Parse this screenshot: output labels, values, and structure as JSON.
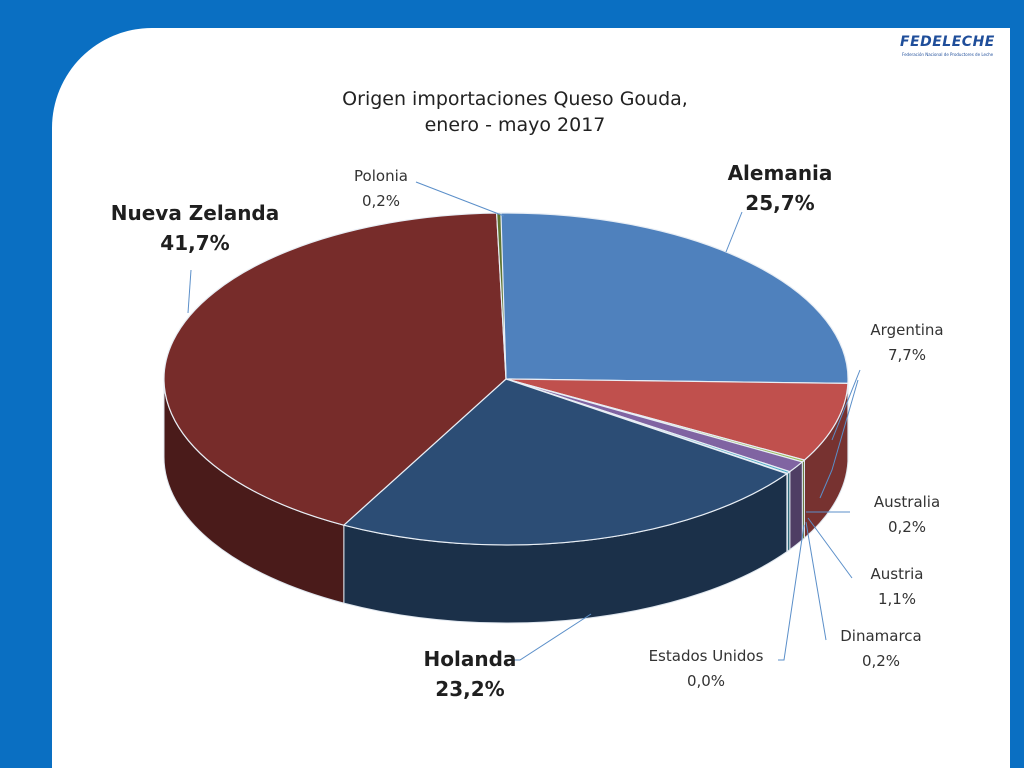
{
  "chart_data": {
    "type": "pie",
    "title_line1": "Origen importaciones Queso Gouda,",
    "title_line2": "enero - mayo 2017",
    "slices": [
      {
        "name": "Alemania",
        "value": 25.7,
        "label": "25,7%",
        "color": "#4f81bd"
      },
      {
        "name": "Argentina",
        "value": 7.7,
        "label": "7,7%",
        "color": "#c0504d"
      },
      {
        "name": "Australia",
        "value": 0.2,
        "label": "0,2%",
        "color": "#9bbb59"
      },
      {
        "name": "Austria",
        "value": 1.1,
        "label": "1,1%",
        "color": "#8064a2"
      },
      {
        "name": "Dinamarca",
        "value": 0.2,
        "label": "0,2%",
        "color": "#4bacc6"
      },
      {
        "name": "Estados Unidos",
        "value": 0.0,
        "label": "0,0%",
        "color": "#f79646"
      },
      {
        "name": "Holanda",
        "value": 23.2,
        "label": "23,2%",
        "color": "#2c4d75"
      },
      {
        "name": "Nueva Zelanda",
        "value": 41.7,
        "label": "41,7%",
        "color": "#772c2a"
      },
      {
        "name": "Polonia",
        "value": 0.2,
        "label": "0,2%",
        "color": "#5f7530"
      }
    ]
  },
  "logo": {
    "text": "FEDELECHE",
    "subtitle": "Federación Nacional de Productores de Leche"
  }
}
